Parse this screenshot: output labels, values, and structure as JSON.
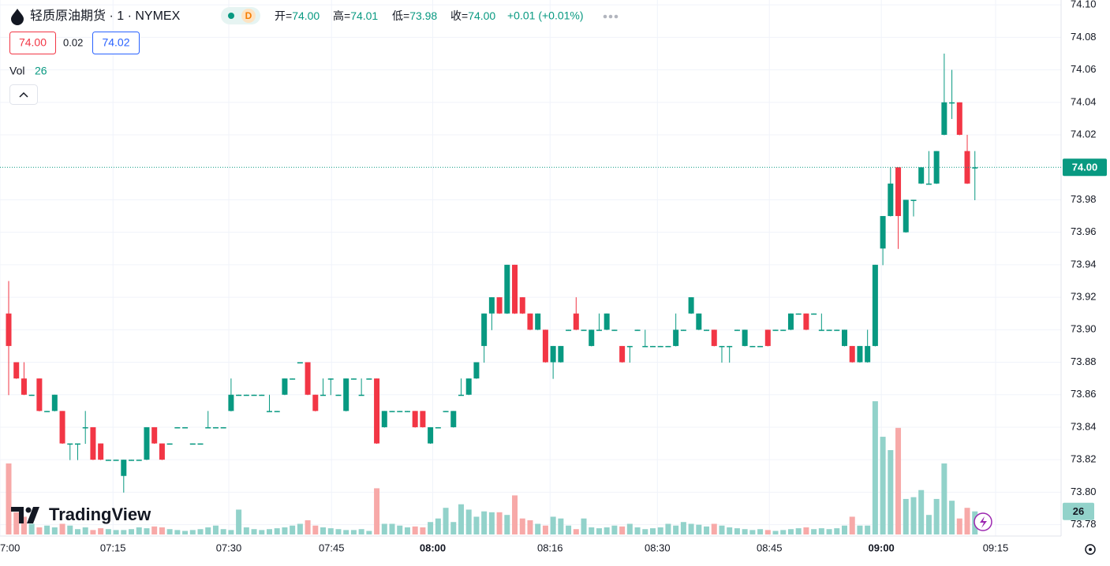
{
  "header": {
    "title": "轻质原油期货 · 1 · NYMEX",
    "badge": "D",
    "ohlc": [
      {
        "label": "开=",
        "value": "74.00"
      },
      {
        "label": "高=",
        "value": "74.01"
      },
      {
        "label": "低=",
        "value": "73.98"
      },
      {
        "label": "收=",
        "value": "74.00"
      }
    ],
    "change": "+0.01 (+0.01%)",
    "bid": "74.00",
    "spread": "0.02",
    "ask": "74.02",
    "volume_label": "Vol",
    "volume_value": "26"
  },
  "logo": "TradingView",
  "chart_data": {
    "type": "candlestick",
    "up_color": "#089981",
    "down_color": "#f23645",
    "up_volume_color": "#92d2ca",
    "down_volume_color": "#f7a9a8",
    "values": [
      [
        73.91,
        73.93,
        73.86,
        73.89
      ],
      [
        73.88,
        73.88,
        73.87,
        73.87
      ],
      [
        73.87,
        73.88,
        73.86,
        73.86
      ],
      [
        73.86,
        73.86,
        73.86,
        73.86
      ],
      [
        73.87,
        73.87,
        73.85,
        73.85
      ],
      [
        73.85,
        73.85,
        73.85,
        73.85
      ],
      [
        73.85,
        73.86,
        73.85,
        73.86
      ],
      [
        73.85,
        73.85,
        73.83,
        73.83
      ],
      [
        73.83,
        73.83,
        73.82,
        73.83
      ],
      [
        73.83,
        73.83,
        73.82,
        73.83
      ],
      [
        73.84,
        73.85,
        73.83,
        73.84
      ],
      [
        73.84,
        73.84,
        73.82,
        73.82
      ],
      [
        73.83,
        73.83,
        73.82,
        73.82
      ],
      [
        73.82,
        73.82,
        73.82,
        73.82
      ],
      [
        73.82,
        73.82,
        73.82,
        73.82
      ],
      [
        73.81,
        73.82,
        73.8,
        73.82
      ],
      [
        73.82,
        73.82,
        73.82,
        73.82
      ],
      [
        73.82,
        73.82,
        73.82,
        73.82
      ],
      [
        73.82,
        73.84,
        73.82,
        73.84
      ],
      [
        73.84,
        73.84,
        73.83,
        73.83
      ],
      [
        73.83,
        73.83,
        73.82,
        73.82
      ],
      [
        73.83,
        73.83,
        73.83,
        73.83
      ],
      [
        73.84,
        73.84,
        73.84,
        73.84
      ],
      [
        73.84,
        73.84,
        73.84,
        73.84
      ],
      [
        73.83,
        73.83,
        73.83,
        73.83
      ],
      [
        73.83,
        73.83,
        73.83,
        73.83
      ],
      [
        73.84,
        73.85,
        73.84,
        73.84
      ],
      [
        73.84,
        73.84,
        73.84,
        73.84
      ],
      [
        73.84,
        73.84,
        73.84,
        73.84
      ],
      [
        73.85,
        73.87,
        73.85,
        73.86
      ],
      [
        73.86,
        73.86,
        73.86,
        73.86
      ],
      [
        73.86,
        73.86,
        73.86,
        73.86
      ],
      [
        73.86,
        73.86,
        73.86,
        73.86
      ],
      [
        73.86,
        73.86,
        73.86,
        73.86
      ],
      [
        73.85,
        73.86,
        73.85,
        73.85
      ],
      [
        73.85,
        73.85,
        73.85,
        73.85
      ],
      [
        73.86,
        73.87,
        73.86,
        73.87
      ],
      [
        73.87,
        73.87,
        73.87,
        73.87
      ],
      [
        73.88,
        73.88,
        73.88,
        73.88
      ],
      [
        73.88,
        73.88,
        73.86,
        73.86
      ],
      [
        73.86,
        73.86,
        73.85,
        73.85
      ],
      [
        73.86,
        73.87,
        73.86,
        73.86
      ],
      [
        73.87,
        73.87,
        73.86,
        73.87
      ],
      [
        73.86,
        73.86,
        73.86,
        73.86
      ],
      [
        73.85,
        73.87,
        73.85,
        73.87
      ],
      [
        73.87,
        73.87,
        73.87,
        73.87
      ],
      [
        73.86,
        73.87,
        73.86,
        73.86
      ],
      [
        73.87,
        73.87,
        73.87,
        73.87
      ],
      [
        73.87,
        73.87,
        73.83,
        73.83
      ],
      [
        73.84,
        73.85,
        73.84,
        73.85
      ],
      [
        73.85,
        73.85,
        73.85,
        73.85
      ],
      [
        73.85,
        73.85,
        73.85,
        73.85
      ],
      [
        73.85,
        73.85,
        73.85,
        73.85
      ],
      [
        73.85,
        73.85,
        73.84,
        73.84
      ],
      [
        73.85,
        73.85,
        73.84,
        73.84
      ],
      [
        73.83,
        73.84,
        73.83,
        73.84
      ],
      [
        73.84,
        73.84,
        73.84,
        73.84
      ],
      [
        73.85,
        73.85,
        73.85,
        73.85
      ],
      [
        73.84,
        73.85,
        73.84,
        73.85
      ],
      [
        73.86,
        73.87,
        73.86,
        73.86
      ],
      [
        73.86,
        73.87,
        73.86,
        73.87
      ],
      [
        73.87,
        73.88,
        73.87,
        73.88
      ],
      [
        73.89,
        73.91,
        73.88,
        73.91
      ],
      [
        73.91,
        73.92,
        73.9,
        73.92
      ],
      [
        73.92,
        73.92,
        73.91,
        73.91
      ],
      [
        73.91,
        73.94,
        73.91,
        73.94
      ],
      [
        73.94,
        73.94,
        73.91,
        73.91
      ],
      [
        73.92,
        73.92,
        73.91,
        73.91
      ],
      [
        73.91,
        73.91,
        73.9,
        73.9
      ],
      [
        73.9,
        73.91,
        73.9,
        73.91
      ],
      [
        73.9,
        73.9,
        73.88,
        73.88
      ],
      [
        73.88,
        73.89,
        73.87,
        73.89
      ],
      [
        73.88,
        73.89,
        73.88,
        73.89
      ],
      [
        73.9,
        73.9,
        73.9,
        73.9
      ],
      [
        73.91,
        73.92,
        73.9,
        73.9
      ],
      [
        73.9,
        73.9,
        73.9,
        73.9
      ],
      [
        73.89,
        73.9,
        73.89,
        73.9
      ],
      [
        73.9,
        73.91,
        73.9,
        73.9
      ],
      [
        73.9,
        73.91,
        73.9,
        73.91
      ],
      [
        73.9,
        73.9,
        73.9,
        73.9
      ],
      [
        73.89,
        73.89,
        73.88,
        73.88
      ],
      [
        73.89,
        73.89,
        73.88,
        73.89
      ],
      [
        73.9,
        73.9,
        73.9,
        73.9
      ],
      [
        73.89,
        73.9,
        73.89,
        73.89
      ],
      [
        73.89,
        73.89,
        73.89,
        73.89
      ],
      [
        73.89,
        73.89,
        73.89,
        73.89
      ],
      [
        73.89,
        73.89,
        73.89,
        73.89
      ],
      [
        73.89,
        73.91,
        73.89,
        73.9
      ],
      [
        73.9,
        73.9,
        73.9,
        73.9
      ],
      [
        73.91,
        73.92,
        73.91,
        73.92
      ],
      [
        73.9,
        73.91,
        73.9,
        73.91
      ],
      [
        73.9,
        73.9,
        73.9,
        73.9
      ],
      [
        73.9,
        73.9,
        73.89,
        73.89
      ],
      [
        73.89,
        73.89,
        73.88,
        73.89
      ],
      [
        73.89,
        73.89,
        73.88,
        73.89
      ],
      [
        73.9,
        73.9,
        73.9,
        73.9
      ],
      [
        73.89,
        73.9,
        73.89,
        73.9
      ],
      [
        73.89,
        73.89,
        73.89,
        73.89
      ],
      [
        73.89,
        73.89,
        73.89,
        73.89
      ],
      [
        73.9,
        73.9,
        73.89,
        73.89
      ],
      [
        73.9,
        73.9,
        73.9,
        73.9
      ],
      [
        73.9,
        73.9,
        73.9,
        73.9
      ],
      [
        73.9,
        73.91,
        73.9,
        73.91
      ],
      [
        73.91,
        73.91,
        73.91,
        73.91
      ],
      [
        73.91,
        73.91,
        73.9,
        73.9
      ],
      [
        73.91,
        73.91,
        73.91,
        73.91
      ],
      [
        73.9,
        73.91,
        73.9,
        73.9
      ],
      [
        73.9,
        73.9,
        73.9,
        73.9
      ],
      [
        73.9,
        73.9,
        73.9,
        73.9
      ],
      [
        73.89,
        73.9,
        73.89,
        73.9
      ],
      [
        73.89,
        73.89,
        73.88,
        73.88
      ],
      [
        73.88,
        73.89,
        73.88,
        73.89
      ],
      [
        73.88,
        73.9,
        73.88,
        73.89
      ],
      [
        73.89,
        73.94,
        73.89,
        73.94
      ],
      [
        73.95,
        73.97,
        73.94,
        73.97
      ],
      [
        73.97,
        74.0,
        73.97,
        73.99
      ],
      [
        74.0,
        74.0,
        73.95,
        73.97
      ],
      [
        73.96,
        73.98,
        73.96,
        73.98
      ],
      [
        73.98,
        73.98,
        73.97,
        73.98
      ],
      [
        73.99,
        74.0,
        73.99,
        74.0
      ],
      [
        73.99,
        74.01,
        73.99,
        73.99
      ],
      [
        73.99,
        74.01,
        73.99,
        74.01
      ],
      [
        74.02,
        74.07,
        74.02,
        74.04
      ],
      [
        74.04,
        74.06,
        74.03,
        74.04
      ],
      [
        74.04,
        74.04,
        74.02,
        74.02
      ],
      [
        74.01,
        74.02,
        73.99,
        73.99
      ],
      [
        74.0,
        74.01,
        73.98,
        74.0
      ]
    ],
    "volume": [
      80,
      25,
      20,
      12,
      8,
      10,
      8,
      12,
      10,
      6,
      8,
      5,
      7,
      6,
      5,
      5,
      6,
      8,
      7,
      9,
      8,
      6,
      5,
      4,
      5,
      6,
      8,
      10,
      6,
      5,
      28,
      8,
      6,
      5,
      6,
      7,
      8,
      10,
      12,
      16,
      10,
      8,
      7,
      6,
      5,
      5,
      6,
      4,
      52,
      12,
      12,
      10,
      8,
      9,
      8,
      14,
      18,
      30,
      14,
      34,
      28,
      20,
      26,
      25,
      25,
      22,
      44,
      18,
      16,
      12,
      10,
      20,
      18,
      10,
      6,
      18,
      8,
      7,
      8,
      10,
      9,
      12,
      8,
      6,
      7,
      8,
      12,
      10,
      14,
      12,
      11,
      9,
      12,
      10,
      8,
      7,
      6,
      5,
      6,
      5,
      4,
      5,
      6,
      7,
      8,
      6,
      7,
      6,
      7,
      10,
      20,
      10,
      10,
      150,
      110,
      95,
      120,
      40,
      42,
      50,
      22,
      40,
      80,
      38,
      18,
      30,
      26
    ],
    "last_price": {
      "value": 74,
      "label": "74.00"
    },
    "last_volume": 26,
    "ylim": [
      73.773,
      74.103
    ],
    "yticks": [
      73.78,
      {
        "value": 73.8,
        "label": "73.80"
      },
      73.82,
      73.84,
      73.86,
      73.88,
      {
        "value": 73.9,
        "label": "73.90"
      },
      73.92,
      73.94,
      73.96,
      73.98,
      74.02,
      74.04,
      74.06,
      74.08,
      {
        "value": 74.1,
        "label": "74.10"
      }
    ],
    "xlim": [
      -1.132,
      137.24
    ],
    "xticks": [
      {
        "value": -1.132,
        "label": "7:00"
      },
      {
        "value": 13.6,
        "label": "07:15"
      },
      {
        "value": 28.7,
        "label": "07:30"
      },
      {
        "value": 42.1,
        "label": "07:45"
      },
      {
        "value": 55.3,
        "label": "08:00",
        "bold": true
      },
      {
        "value": 70.6,
        "label": "08:16"
      },
      {
        "value": 84.6,
        "label": "08:30"
      },
      {
        "value": 99.2,
        "label": "08:45"
      },
      {
        "value": 113.8,
        "label": "09:00",
        "bold": true
      },
      {
        "value": 128.7,
        "label": "09:15"
      }
    ],
    "grid": true
  }
}
